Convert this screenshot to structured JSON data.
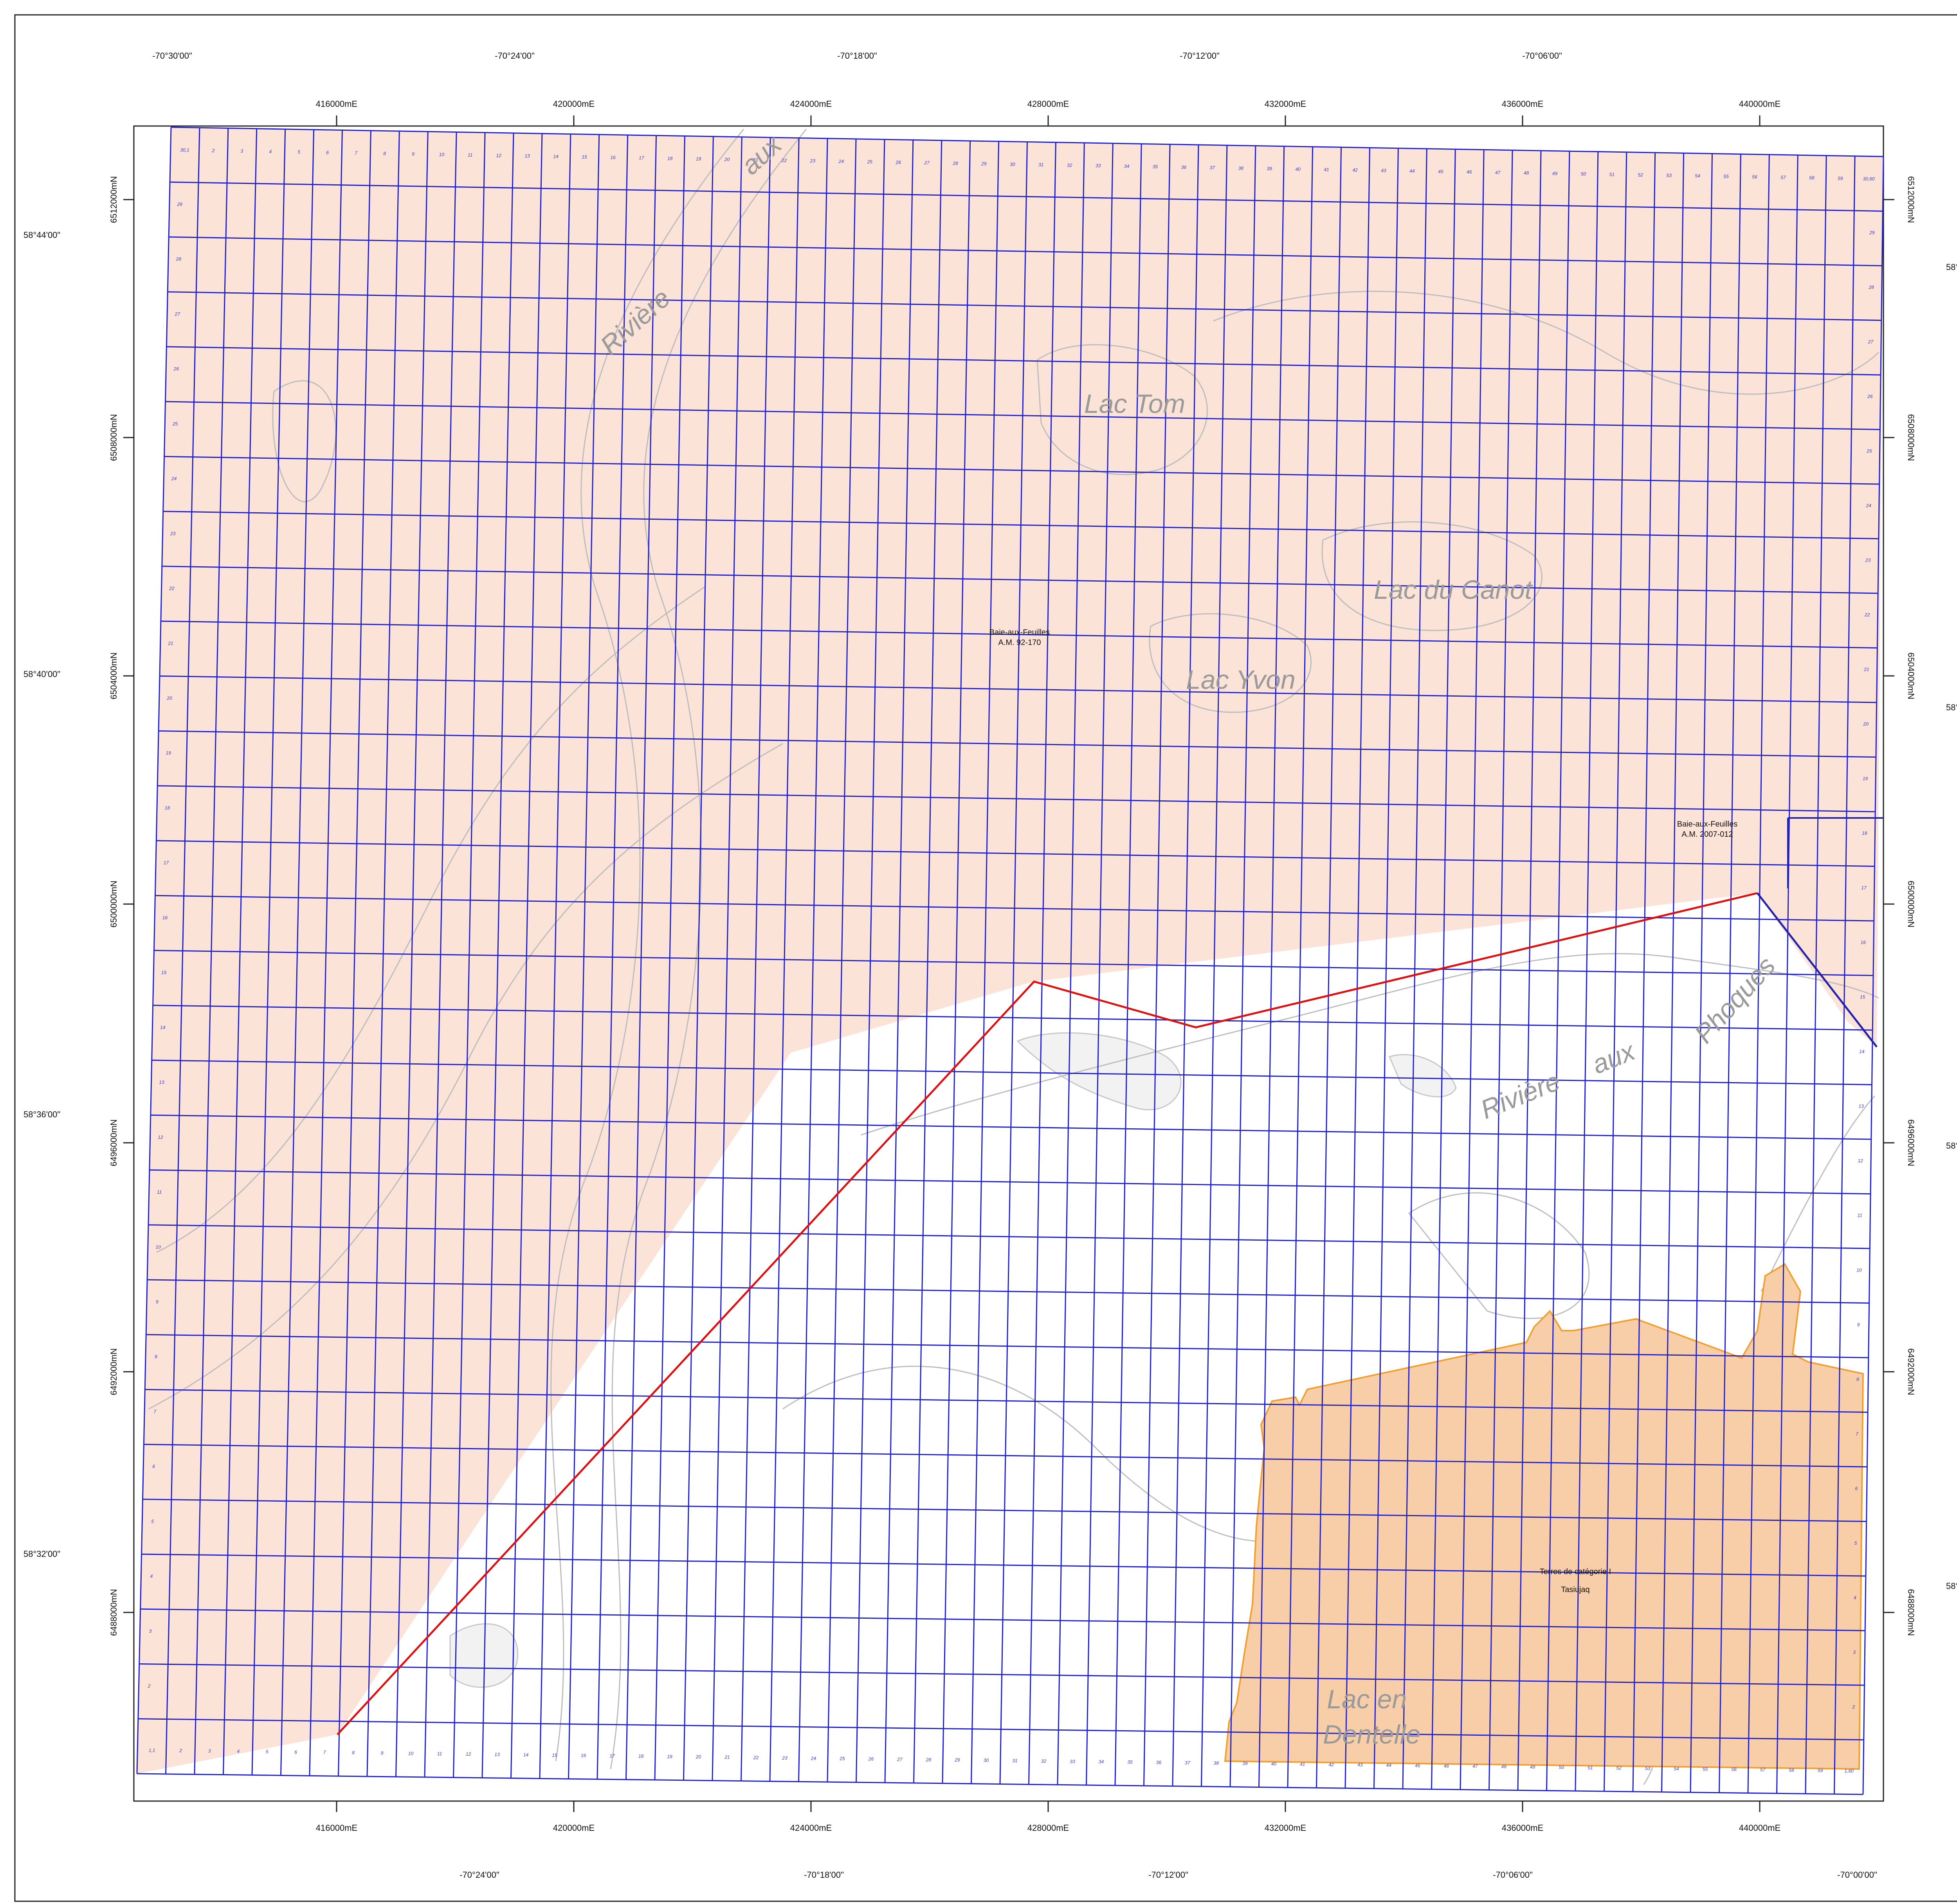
{
  "colors": {
    "claim_fill": "#fce3d8",
    "category_fill": "#f7cea8",
    "category_stroke": "#f0a030",
    "grid": "#2222cc",
    "boundary": "#dd1111",
    "contour": "#bdbdbd",
    "lake": "#f2f2f2",
    "text": "#111111"
  },
  "lon_labels_top": [
    "-70°30'00\"",
    "-70°24'00\"",
    "-70°18'00\"",
    "-70°12'00\"",
    "-70°06'00\""
  ],
  "lon_labels_bottom": [
    "-70°24'00\"",
    "-70°18'00\"",
    "-70°12'00\"",
    "-70°06'00\"",
    "-70°00'00\""
  ],
  "easting_labels": [
    "416000mE",
    "420000mE",
    "424000mE",
    "428000mE",
    "432000mE",
    "436000mE",
    "440000mE"
  ],
  "northing_labels": [
    "6512000mN",
    "6508000mN",
    "6504000mN",
    "6500000mN",
    "6496000mN",
    "6492000mN",
    "6488000mN"
  ],
  "lat_labels": [
    "58°44'00\"",
    "58°40'00\"",
    "58°36'00\"",
    "58°32'00\""
  ],
  "place_names": {
    "riviere_north": "Rivière",
    "aux_north": "aux",
    "lac_tom": "Lac Tom",
    "lac_canot": "Lac du Canot",
    "lac_yvon": "Lac Yvon",
    "riviere_phoques": "Rivière",
    "aux_phoques": "aux",
    "phoques": "Phoques",
    "lac_en": "Lac en",
    "dentelle": "Dentelle"
  },
  "areas": {
    "baie1_name": "Baie-aux-Feuilles",
    "baie1_code": "A.M. 92-170",
    "baie2_name": "Baie-aux-Feuilles",
    "baie2_code": "A.M. 2007-012",
    "terres_name": "Terres de catégorie I",
    "terres_place": "Tasiujaq"
  },
  "grid": {
    "top_row_labels": [
      "30,1",
      "2",
      "3",
      "4",
      "5",
      "6",
      "7",
      "8",
      "9",
      "10",
      "11",
      "12",
      "13",
      "14",
      "15",
      "16",
      "17",
      "18",
      "19",
      "20",
      "21",
      "22",
      "23",
      "24",
      "25",
      "26",
      "27",
      "28",
      "29",
      "30",
      "31",
      "32",
      "33",
      "34",
      "35",
      "36",
      "37",
      "38",
      "39",
      "40",
      "41",
      "42",
      "43",
      "44",
      "45",
      "46",
      "47",
      "48",
      "49",
      "50",
      "51",
      "52",
      "53",
      "54",
      "55",
      "56",
      "57",
      "58",
      "59",
      "30,60"
    ],
    "bottom_row_labels": [
      "1,1",
      "2",
      "3",
      "4",
      "5",
      "6",
      "7",
      "8",
      "9",
      "10",
      "11",
      "12",
      "13",
      "14",
      "15",
      "16",
      "17",
      "18",
      "19",
      "20",
      "21",
      "22",
      "23",
      "24",
      "25",
      "26",
      "27",
      "28",
      "29",
      "30",
      "31",
      "32",
      "33",
      "34",
      "35",
      "36",
      "37",
      "38",
      "39",
      "40",
      "41",
      "42",
      "43",
      "44",
      "45",
      "46",
      "47",
      "48",
      "49",
      "50",
      "51",
      "52",
      "53",
      "54",
      "55",
      "56",
      "57",
      "58",
      "59",
      "1,60"
    ],
    "left_col_labels": [
      "29",
      "28",
      "27",
      "26",
      "25",
      "24",
      "23",
      "22",
      "21",
      "20",
      "19",
      "18",
      "17",
      "16",
      "15",
      "14",
      "13",
      "12",
      "11",
      "10",
      "9",
      "8",
      "7",
      "6",
      "5",
      "4",
      "3",
      "2"
    ],
    "right_col_labels": [
      "29",
      "28",
      "27",
      "26",
      "25",
      "24",
      "23",
      "22",
      "21",
      "20",
      "19",
      "18",
      "17",
      "16",
      "15",
      "14",
      "13",
      "12",
      "11",
      "10",
      "9",
      "8",
      "7",
      "6",
      "5",
      "4",
      "3",
      "2"
    ]
  }
}
